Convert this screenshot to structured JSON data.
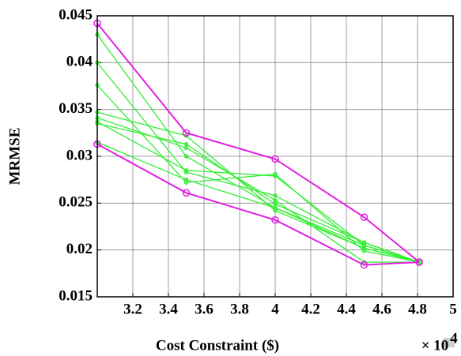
{
  "chart_data": {
    "type": "line",
    "x_label": "Cost Constraint ($)",
    "y_label": "MRMSE",
    "x_multiplier": {
      "base": "× 10",
      "exponent": "4"
    },
    "x": [
      3.0,
      3.5,
      4.0,
      4.5,
      4.81
    ],
    "xlim": [
      3.0,
      5.0
    ],
    "xticks": [
      3.2,
      3.4,
      3.6,
      3.8,
      4,
      4.2,
      4.4,
      4.6,
      4.8,
      5
    ],
    "ylim": [
      0.015,
      0.045
    ],
    "yticks": [
      0.015,
      0.02,
      0.025,
      0.03,
      0.035,
      0.04,
      0.045
    ],
    "grid": true,
    "series": [
      {
        "color": "#33ee33",
        "values": [
          0.043,
          0.03,
          0.0245,
          0.0205,
          0.0187
        ]
      },
      {
        "color": "#33ee33",
        "values": [
          0.04,
          0.0283,
          0.0258,
          0.0208,
          0.0187
        ]
      },
      {
        "color": "#33ee33",
        "values": [
          0.0376,
          0.0272,
          0.0281,
          0.0199,
          0.0187
        ]
      },
      {
        "color": "#33ee33",
        "values": [
          0.0347,
          0.0322,
          0.0242,
          0.0202,
          0.0187
        ]
      },
      {
        "color": "#33ee33",
        "values": [
          0.0341,
          0.0309,
          0.0253,
          0.0187,
          0.0187
        ]
      },
      {
        "color": "#33ee33",
        "values": [
          0.0337,
          0.0285,
          0.0279,
          0.0205,
          0.0187
        ]
      },
      {
        "color": "#33ee33",
        "values": [
          0.0335,
          0.0313,
          0.0249,
          0.0208,
          0.0187
        ]
      },
      {
        "color": "#33ee33",
        "values": [
          0.0315,
          0.0275,
          0.0245,
          0.0202,
          0.0187
        ]
      },
      {
        "color": "#e020e0",
        "values": [
          0.0442,
          0.0325,
          0.0297,
          0.0235,
          0.0187
        ]
      },
      {
        "color": "#e020e0",
        "values": [
          0.0313,
          0.0261,
          0.0232,
          0.0184,
          0.0187
        ]
      }
    ]
  }
}
